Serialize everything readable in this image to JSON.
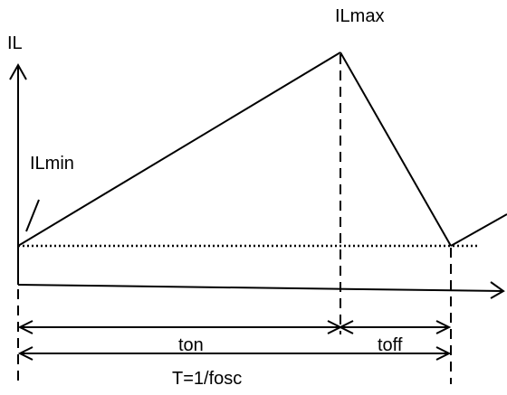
{
  "diagram": {
    "axis_y_label": "IL",
    "peak_label": "ILmax",
    "min_label": "ILmin",
    "on_time_label": "ton",
    "off_time_label": "toff",
    "period_label": "T=1/fosc"
  },
  "colors": {
    "line": "#000000",
    "background": "#ffffff"
  }
}
